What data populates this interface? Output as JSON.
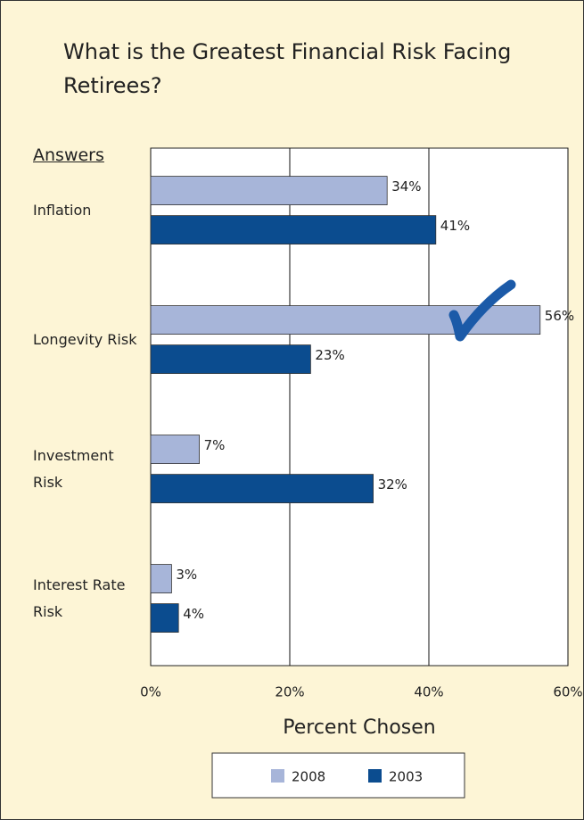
{
  "chart_data": {
    "type": "bar",
    "orientation": "horizontal",
    "title": "What is the Greatest Financial Risk Facing Retirees?",
    "y_axis_label": "Answers",
    "x_axis_label": "Percent Chosen",
    "categories": [
      "Inflation",
      "Longevity Risk",
      "Investment Risk",
      "Interest Rate Risk"
    ],
    "series": [
      {
        "name": "2008",
        "color": "#a7b5d9",
        "values": [
          34,
          56,
          7,
          3
        ],
        "value_labels": [
          "34%",
          "56%",
          "7%",
          "3%"
        ]
      },
      {
        "name": "2003",
        "color": "#0b4c8f",
        "values": [
          41,
          23,
          32,
          4
        ],
        "value_labels": [
          "41%",
          "23%",
          "32%",
          "4%"
        ]
      }
    ],
    "xlim": [
      0,
      60
    ],
    "xticks": [
      {
        "value": 0,
        "label": "0%"
      },
      {
        "value": 20,
        "label": "20%"
      },
      {
        "value": 40,
        "label": "40%"
      },
      {
        "value": 60,
        "label": "60%"
      }
    ],
    "grid": true,
    "legend": "bottom"
  }
}
